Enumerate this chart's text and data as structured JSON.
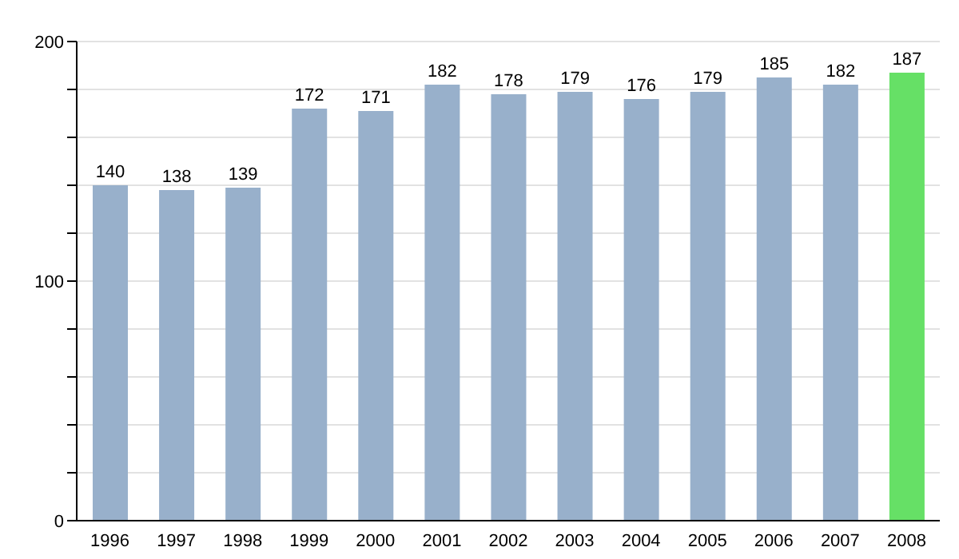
{
  "chart_data": {
    "type": "bar",
    "categories": [
      "1996",
      "1997",
      "1998",
      "1999",
      "2000",
      "2001",
      "2002",
      "2003",
      "2004",
      "2005",
      "2006",
      "2007",
      "2008"
    ],
    "values": [
      140,
      138,
      139,
      172,
      171,
      182,
      178,
      179,
      176,
      179,
      185,
      182,
      187
    ],
    "colors": [
      "#98b0cb",
      "#98b0cb",
      "#98b0cb",
      "#98b0cb",
      "#98b0cb",
      "#98b0cb",
      "#98b0cb",
      "#98b0cb",
      "#98b0cb",
      "#98b0cb",
      "#98b0cb",
      "#98b0cb",
      "#66e066"
    ],
    "ylim": [
      0,
      200
    ],
    "yticks": [
      0,
      {
        "value": 20,
        "label": null
      },
      {
        "value": 40,
        "label": null
      },
      {
        "value": 60,
        "label": null
      },
      {
        "value": 80,
        "label": null
      },
      100,
      {
        "value": 120,
        "label": null
      },
      {
        "value": 140,
        "label": null
      },
      {
        "value": 160,
        "label": null
      },
      {
        "value": 180,
        "label": null
      },
      200
    ],
    "grid": "y",
    "data_labels": true,
    "legend": false
  }
}
